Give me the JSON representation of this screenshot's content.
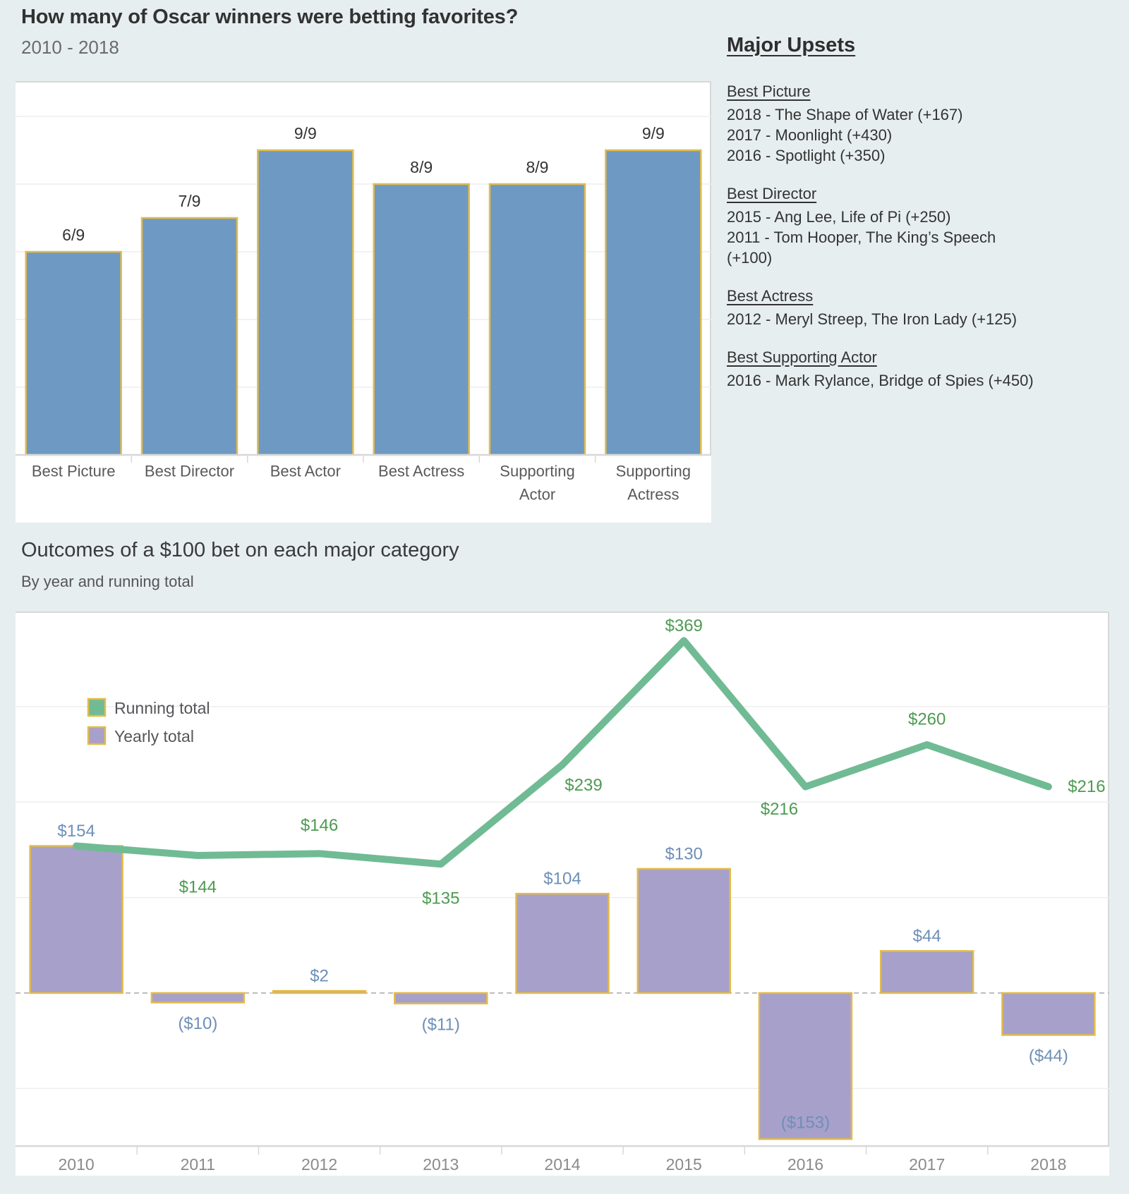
{
  "header": {
    "title": "How many of Oscar winners were betting favorites?",
    "subtitle": "2010 - 2018"
  },
  "major_upsets": {
    "heading": "Major Upsets",
    "sections": [
      {
        "header": "Best Picture",
        "lines": [
          "2018 - The Shape of Water (+167)",
          "2017 - Moonlight (+430)",
          "2016 - Spotlight (+350)"
        ]
      },
      {
        "header": "Best Director",
        "lines": [
          "2015 - Ang Lee, Life of Pi (+250)",
          "2011 - Tom Hooper, The King’s Speech",
          "(+100)"
        ]
      },
      {
        "header": "Best Actress",
        "lines": [
          "2012 - Meryl Streep, The Iron Lady (+125)"
        ]
      },
      {
        "header": "Best Supporting Actor",
        "lines": [
          "2016 - Mark Rylance, Bridge of Spies (+450)"
        ]
      }
    ]
  },
  "section2": {
    "title": "Outcomes of a $100 bet on each major category",
    "subtitle": "By year and running total"
  },
  "legend": {
    "running_label": "Running total",
    "yearly_label": "Yearly total"
  },
  "colors": {
    "background": "#e7eef0",
    "bar_blue": "#6e99c3",
    "bar_purple": "#a7a0ca",
    "gold_border": "#e3bc4a",
    "line_green": "#70bb94",
    "green_text": "#4d9b50",
    "blue_text": "#6e8fb7",
    "gridline": "#eeeeee",
    "axis": "#d8d8d8",
    "zero_dash": "#bdbdbd",
    "value_text": "#333333",
    "cat_text": "#58595b",
    "year_text": "#8a8a8a",
    "legend_text": "#55565a"
  },
  "chart_data": [
    {
      "type": "bar",
      "title": "How many of Oscar winners were betting favorites?",
      "subtitle": "2010 - 2018",
      "categories": [
        "Best Picture",
        "Best Director",
        "Best Actor",
        "Best Actress",
        "Supporting Actor",
        "Supporting Actress"
      ],
      "values": [
        6,
        7,
        9,
        8,
        8,
        9
      ],
      "bar_labels": [
        "6/9",
        "7/9",
        "9/9",
        "8/9",
        "8/9",
        "9/9"
      ],
      "xlabel": "",
      "ylabel": "",
      "ylim": [
        0,
        11
      ],
      "gridline_step": 2,
      "grid": "horizontal",
      "legend_position": "none"
    },
    {
      "type": "combo_bar_line",
      "title": "Outcomes of a $100 bet on each major category",
      "subtitle": "By year and running total",
      "categories": [
        "2010",
        "2011",
        "2012",
        "2013",
        "2014",
        "2015",
        "2016",
        "2017",
        "2018"
      ],
      "series": [
        {
          "name": "Yearly total",
          "type": "bar",
          "values": [
            154,
            -10,
            2,
            -11,
            104,
            130,
            -153,
            44,
            -44
          ],
          "labels": [
            "$154",
            "($10)",
            "$2",
            "($11)",
            "$104",
            "$130",
            "($153)",
            "$44",
            "($44)"
          ]
        },
        {
          "name": "Running total",
          "type": "line",
          "values": [
            154,
            144,
            146,
            135,
            239,
            369,
            216,
            260,
            216
          ],
          "labels": [
            null,
            "$144",
            "$146",
            "$135",
            "$239",
            "$369",
            "$216",
            "$260",
            "$216"
          ]
        }
      ],
      "xlabel": "",
      "ylabel": "",
      "ylim": [
        -190,
        420
      ],
      "gridline_step": 100,
      "zero_line": "dashed",
      "grid": "horizontal",
      "legend_position": "top-left"
    }
  ]
}
